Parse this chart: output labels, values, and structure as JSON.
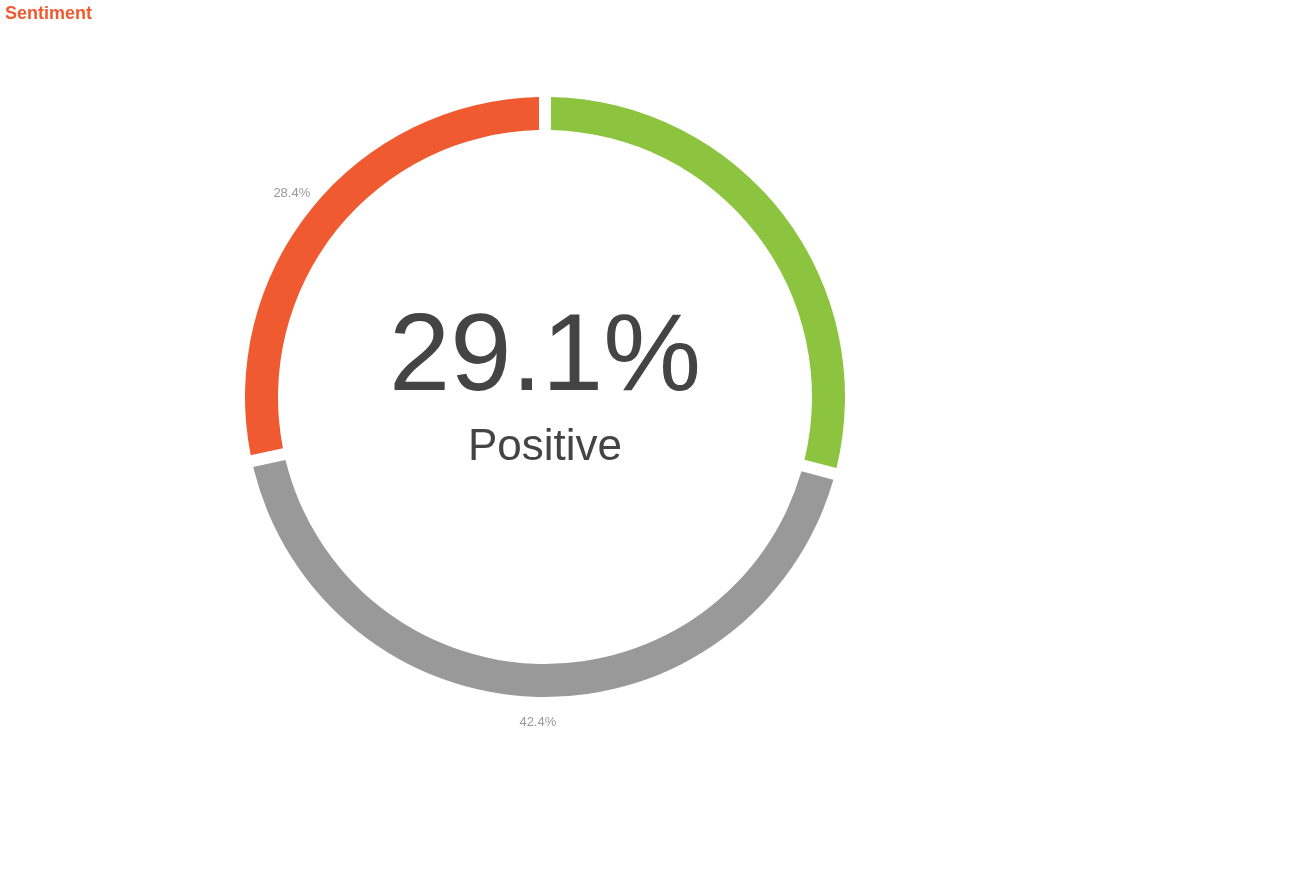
{
  "chart_data": {
    "type": "donut",
    "title": "Sentiment",
    "categories": [
      "Positive",
      null,
      null
    ],
    "values": [
      29.1,
      42.4,
      28.4
    ],
    "colors": [
      "#8cc43f",
      "#999999",
      "#f05a30"
    ],
    "value_labels": [
      "29.1%",
      "42.4%",
      "28.4%"
    ],
    "legend": false
  }
}
